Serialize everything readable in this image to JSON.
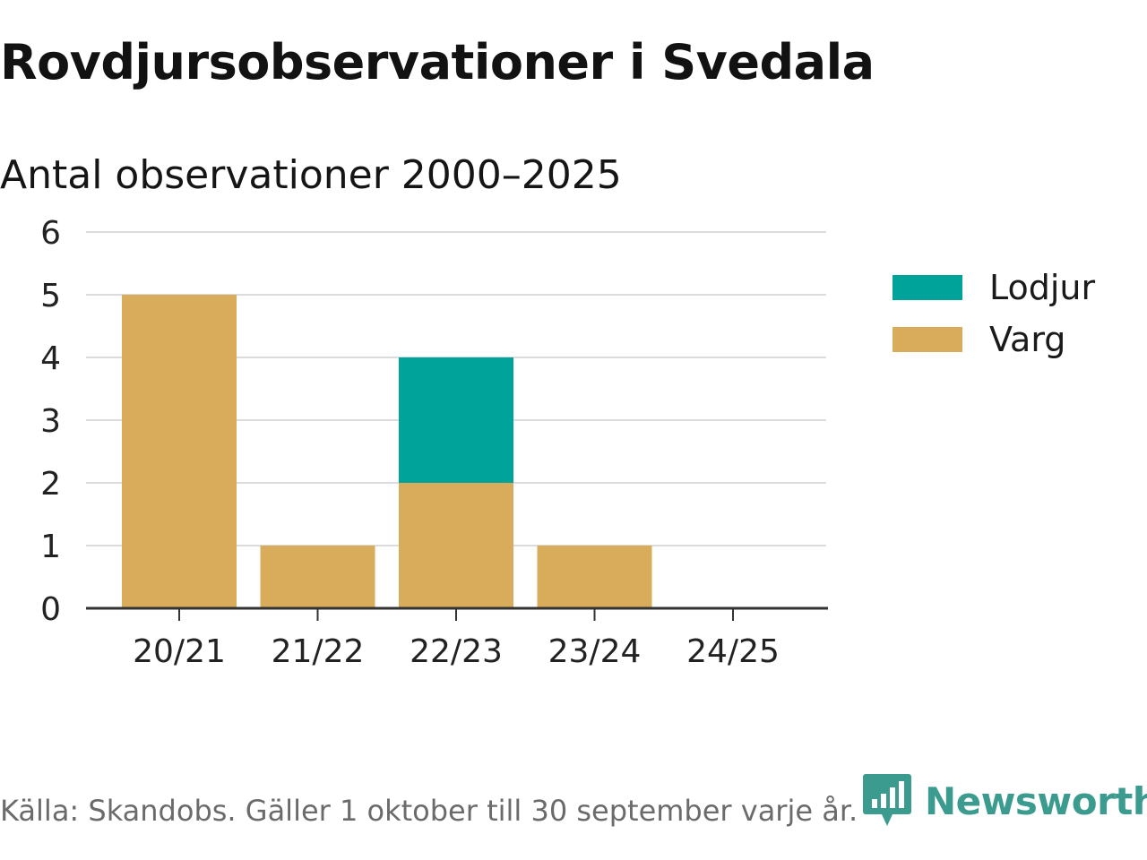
{
  "title": "Rovdjursobservationer i Svedala",
  "subtitle": "Antal observationer 2000–2025",
  "footer": {
    "source": "Källa: Skandobs. Gäller 1 oktober till 30 september varje år.",
    "brand": "Newsworthy"
  },
  "colors": {
    "lodjur": "#00a39a",
    "varg": "#d9ac5b",
    "grid": "#dcdcdc",
    "axis": "#333333",
    "brand": "#3a9b8e"
  },
  "chart_data": {
    "type": "bar",
    "stacked": true,
    "title": "Rovdjursobservationer i Svedala",
    "subtitle": "Antal observationer 2000–2025",
    "xlabel": "",
    "ylabel": "",
    "categories": [
      "20/21",
      "21/22",
      "22/23",
      "23/24",
      "24/25"
    ],
    "series": [
      {
        "name": "Varg",
        "color": "#d9ac5b",
        "values": [
          5,
          1,
          2,
          1,
          0
        ]
      },
      {
        "name": "Lodjur",
        "color": "#00a39a",
        "values": [
          0,
          0,
          2,
          0,
          0
        ]
      }
    ],
    "ylim": [
      0,
      6
    ],
    "yticks": [
      "0",
      "1",
      "2",
      "3",
      "4",
      "5",
      "6"
    ],
    "grid": true,
    "legend": {
      "position": "right",
      "items": [
        {
          "name": "Lodjur",
          "color": "#00a39a"
        },
        {
          "name": "Varg",
          "color": "#d9ac5b"
        }
      ]
    }
  }
}
